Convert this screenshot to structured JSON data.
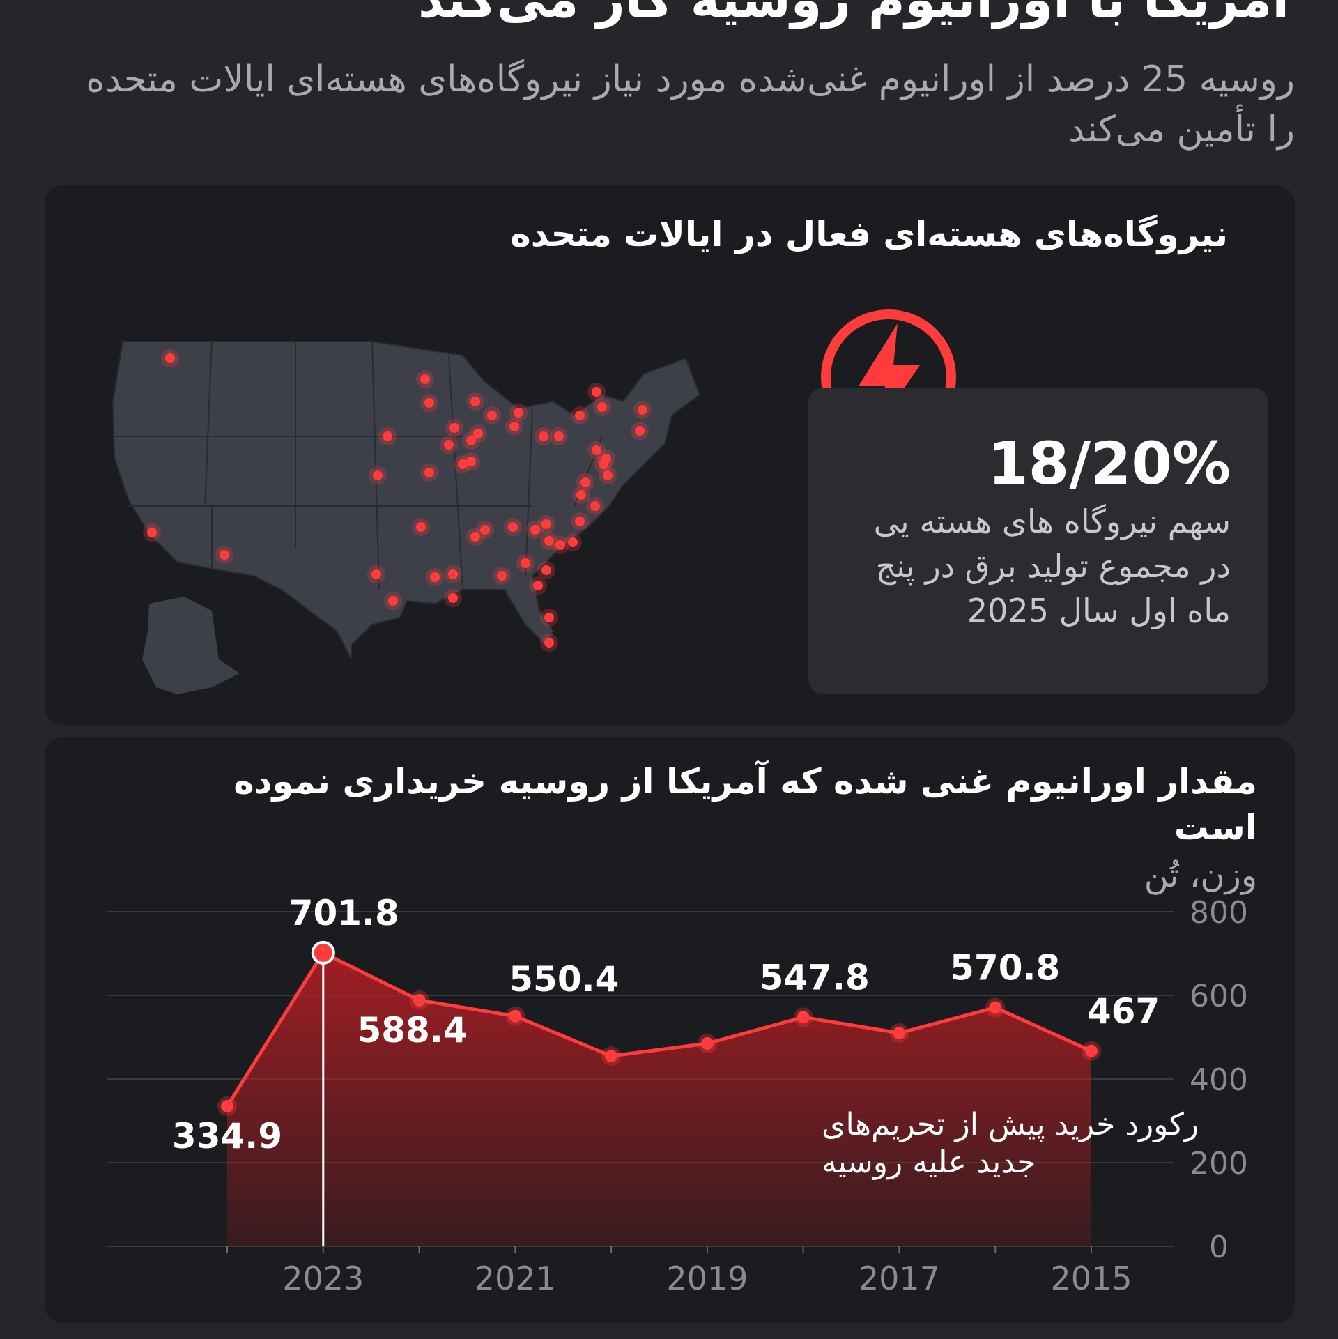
{
  "header": {
    "title": "آمریکا با اورانیوم روسیه کار می‌کند",
    "subtitle": "روسیه 25 درصد از اورانیوم غنی‌شده مورد نیاز نیروگاه‌های هسته‌ای ایالات متحده را تأمین می‌کند"
  },
  "map_card": {
    "title": "نیروگاه‌های هسته‌ای فعال در ایالات متحده",
    "stat_value": "18/20%",
    "stat_caption": "سهم نیروگاه های هسته یی در مجموع تولید برق در پنج ماه اول سال 2025",
    "icon": "lightning-bolt-icon",
    "accent": "#ff3b3b",
    "land_color": "#3e4049"
  },
  "chart_card": {
    "title": "مقدار اورانیوم غنی شده که آمریکا از روسیه خریداری نموده است",
    "unit_label": "وزن، تُن",
    "annotation": "رکورد خرید پیش از تحریم‌های جدید علیه روسیه"
  },
  "chart_data": {
    "type": "area",
    "x": [
      2024,
      2023,
      2022,
      2021,
      2020,
      2019,
      2018,
      2017,
      2016,
      2015
    ],
    "values": [
      334.9,
      701.8,
      588.4,
      550.4,
      455,
      485,
      547.8,
      510,
      570.8,
      467
    ],
    "data_labels": {
      "2024": "334.9",
      "2023": "701.8",
      "2022": "588.4",
      "2021": "550.4",
      "2018": "547.8",
      "2016": "570.8",
      "2015": "467"
    },
    "x_tick_labels": [
      "2023",
      "2021",
      "2019",
      "2017",
      "2015"
    ],
    "y_ticks": [
      0,
      200,
      400,
      600,
      800
    ],
    "ylim": [
      0,
      800
    ],
    "x_reversed": true,
    "grid": true,
    "highlight_year": 2023,
    "line_color": "#ff3b3b",
    "fill_color": "#b81e24"
  }
}
